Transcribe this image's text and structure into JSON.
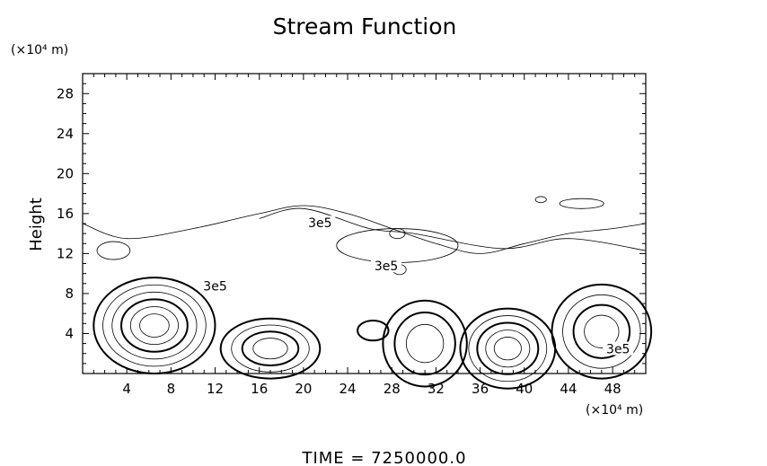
{
  "chart_data": {
    "type": "contour",
    "title": "Stream Function",
    "ylabel": "Height",
    "xlabel": "",
    "x_unit": "(×10⁴ m)",
    "y_unit": "(×10⁴ m)",
    "xlim": [
      0,
      51
    ],
    "ylim": [
      0,
      30
    ],
    "x_ticks": [
      4,
      8,
      12,
      16,
      20,
      24,
      28,
      32,
      36,
      40,
      44,
      48
    ],
    "y_ticks": [
      4,
      8,
      12,
      16,
      20,
      24,
      28
    ],
    "grid": false,
    "contour_label": "3e5",
    "labeled_contour_positions": [
      {
        "x": 21.5,
        "y": 14.8
      },
      {
        "x": 12,
        "y": 8.5
      },
      {
        "x": 27.5,
        "y": 10.5
      },
      {
        "x": 48.5,
        "y": 2.2
      }
    ],
    "features": [
      {
        "kind": "thin-outer-boundary",
        "points": [
          [
            0,
            15
          ],
          [
            4,
            13.5
          ],
          [
            10,
            14.5
          ],
          [
            16,
            16
          ],
          [
            20,
            16.8
          ],
          [
            24,
            16
          ],
          [
            28,
            14.5
          ],
          [
            32,
            13
          ],
          [
            36,
            12
          ],
          [
            40,
            13
          ],
          [
            44,
            14
          ],
          [
            48,
            14.5
          ],
          [
            51,
            15
          ]
        ]
      },
      {
        "kind": "thin-inner-band",
        "points": [
          [
            16,
            15.5
          ],
          [
            20,
            16.5
          ],
          [
            26,
            14.5
          ],
          [
            30,
            14
          ],
          [
            38,
            12.5
          ],
          [
            44,
            13.5
          ],
          [
            51,
            12.3
          ]
        ]
      },
      {
        "kind": "small-closed",
        "center": [
          2.8,
          12.3
        ],
        "rx": 1.5,
        "ry": 0.9
      },
      {
        "kind": "small-closed",
        "center": [
          28.7,
          10.4
        ],
        "rx": 0.6,
        "ry": 0.5
      },
      {
        "kind": "small-closed",
        "center": [
          45.2,
          17
        ],
        "rx": 2,
        "ry": 0.5
      },
      {
        "kind": "small-closed",
        "center": [
          41.5,
          17.4
        ],
        "rx": 0.5,
        "ry": 0.3
      },
      {
        "kind": "small-closed",
        "center": [
          28.5,
          12.8
        ],
        "rx": 5.5,
        "ry": 1.7
      },
      {
        "kind": "small-closed",
        "center": [
          28.5,
          14
        ],
        "rx": 0.7,
        "ry": 0.5
      },
      {
        "kind": "cell",
        "center": [
          6.5,
          4.8
        ],
        "rx": 5.5,
        "ry": 4.8,
        "levels": 6
      },
      {
        "kind": "cell",
        "center": [
          17,
          2.5
        ],
        "rx": 4.5,
        "ry": 3.0,
        "levels": 4
      },
      {
        "kind": "cell",
        "center": [
          26.3,
          4.3
        ],
        "rx": 1.4,
        "ry": 1.0,
        "levels": 1
      },
      {
        "kind": "cell",
        "center": [
          31,
          3
        ],
        "rx": 3.8,
        "ry": 4.3,
        "levels": 3
      },
      {
        "kind": "cell",
        "center": [
          38.5,
          2.5
        ],
        "rx": 4.3,
        "ry": 4.0,
        "levels": 5
      },
      {
        "kind": "cell",
        "center": [
          47,
          4.2
        ],
        "rx": 4.5,
        "ry": 4.7,
        "levels": 4
      }
    ]
  },
  "footer": "TIME  =  7250000.0"
}
